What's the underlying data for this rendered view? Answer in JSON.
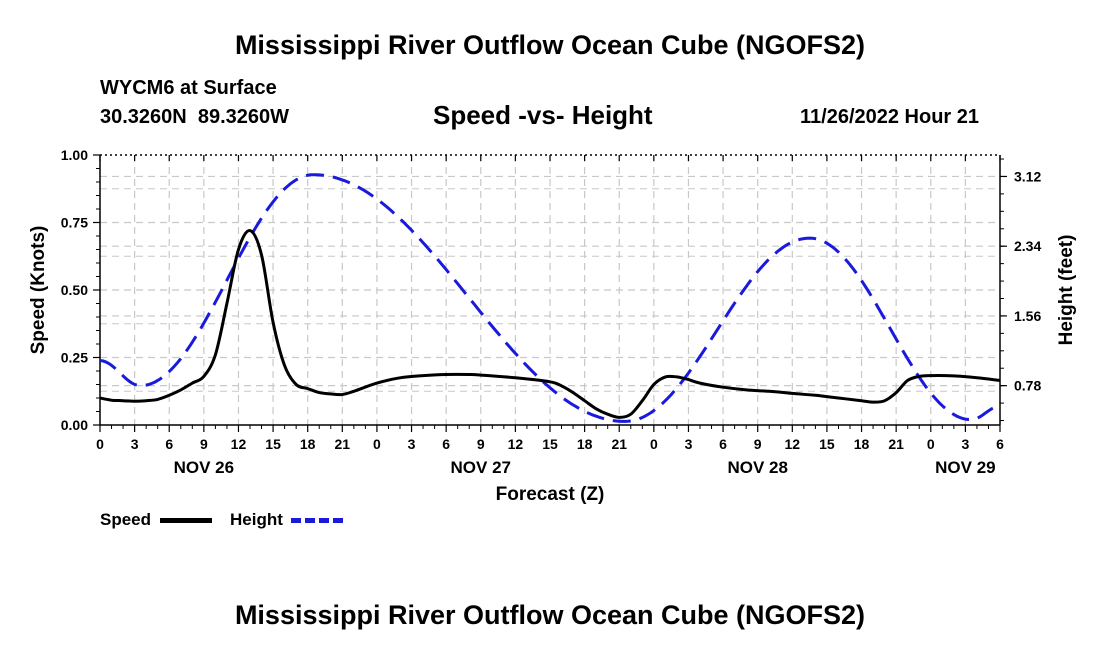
{
  "page": {
    "title": "Mississippi River Outflow Ocean Cube (NGOFS2)",
    "footer_title": "Mississippi River Outflow Ocean Cube (NGOFS2)",
    "station": "WYCM6 at Surface",
    "coords": "30.3260N  89.3260W",
    "subtitle": "Speed -vs- Height",
    "datetime": "11/26/2022 Hour 21"
  },
  "legend": {
    "speed_label": "Speed",
    "height_label": "Height"
  },
  "colors": {
    "speed": "#000000",
    "height": "#1a1adc",
    "grid": "#c8c8c8"
  },
  "chart_data": {
    "type": "line",
    "title": "Speed -vs- Height",
    "xlabel": "Forecast (Z)",
    "ylabel": "Speed (Knots)",
    "y2label": "Height (feet)",
    "xlim": [
      0,
      78
    ],
    "ylim": [
      0,
      1.0
    ],
    "y2lim": [
      0.34,
      3.36
    ],
    "x_ticks": [
      0,
      3,
      6,
      9,
      12,
      15,
      18,
      21,
      24,
      27,
      30,
      33,
      36,
      39,
      42,
      45,
      48,
      51,
      54,
      57,
      60,
      63,
      66,
      69,
      72,
      75,
      78
    ],
    "x_tick_labels": [
      "0",
      "3",
      "6",
      "9",
      "12",
      "15",
      "18",
      "21",
      "0",
      "3",
      "6",
      "9",
      "12",
      "15",
      "18",
      "21",
      "0",
      "3",
      "6",
      "9",
      "12",
      "15",
      "18",
      "21",
      "0",
      "3",
      "6"
    ],
    "y_ticks": [
      0,
      0.25,
      0.5,
      0.75,
      1.0
    ],
    "y_tick_labels": [
      "0.00",
      "0.25",
      "0.50",
      "0.75",
      "1.00"
    ],
    "y2_ticks": [
      0.78,
      1.56,
      2.34,
      3.12
    ],
    "y2_tick_labels": [
      "0.78",
      "1.56",
      "2.34",
      "3.12"
    ],
    "day_labels": [
      {
        "x": 9,
        "label": "NOV 26"
      },
      {
        "x": 33,
        "label": "NOV 27"
      },
      {
        "x": 57,
        "label": "NOV 28"
      },
      {
        "x": 75,
        "label": "NOV 29"
      }
    ],
    "series": [
      {
        "name": "Speed",
        "axis": "left",
        "style": "solid",
        "points": [
          [
            0,
            0.1
          ],
          [
            1,
            0.092
          ],
          [
            2,
            0.09
          ],
          [
            3,
            0.088
          ],
          [
            4,
            0.09
          ],
          [
            5,
            0.095
          ],
          [
            6,
            0.11
          ],
          [
            7,
            0.13
          ],
          [
            8,
            0.155
          ],
          [
            9,
            0.18
          ],
          [
            10,
            0.26
          ],
          [
            11,
            0.45
          ],
          [
            12,
            0.65
          ],
          [
            13,
            0.72
          ],
          [
            14,
            0.63
          ],
          [
            15,
            0.38
          ],
          [
            16,
            0.22
          ],
          [
            17,
            0.15
          ],
          [
            18,
            0.135
          ],
          [
            19,
            0.12
          ],
          [
            20,
            0.115
          ],
          [
            21,
            0.113
          ],
          [
            22,
            0.125
          ],
          [
            24,
            0.155
          ],
          [
            26,
            0.175
          ],
          [
            28,
            0.183
          ],
          [
            30,
            0.187
          ],
          [
            32,
            0.187
          ],
          [
            33,
            0.185
          ],
          [
            36,
            0.175
          ],
          [
            39,
            0.16
          ],
          [
            40,
            0.145
          ],
          [
            41,
            0.12
          ],
          [
            42,
            0.09
          ],
          [
            43,
            0.06
          ],
          [
            44,
            0.04
          ],
          [
            45,
            0.028
          ],
          [
            46,
            0.04
          ],
          [
            47,
            0.09
          ],
          [
            48,
            0.15
          ],
          [
            49,
            0.178
          ],
          [
            50,
            0.178
          ],
          [
            51,
            0.168
          ],
          [
            52,
            0.155
          ],
          [
            54,
            0.14
          ],
          [
            56,
            0.13
          ],
          [
            58,
            0.125
          ],
          [
            60,
            0.117
          ],
          [
            62,
            0.11
          ],
          [
            64,
            0.1
          ],
          [
            66,
            0.09
          ],
          [
            67,
            0.085
          ],
          [
            68,
            0.09
          ],
          [
            69,
            0.12
          ],
          [
            70,
            0.165
          ],
          [
            71,
            0.18
          ],
          [
            72,
            0.183
          ],
          [
            74,
            0.182
          ],
          [
            76,
            0.175
          ],
          [
            78,
            0.165
          ]
        ],
        "points_note": "x in forecast hours from 0 to 78 labelled per 3h ticks"
      }
    ]
  }
}
